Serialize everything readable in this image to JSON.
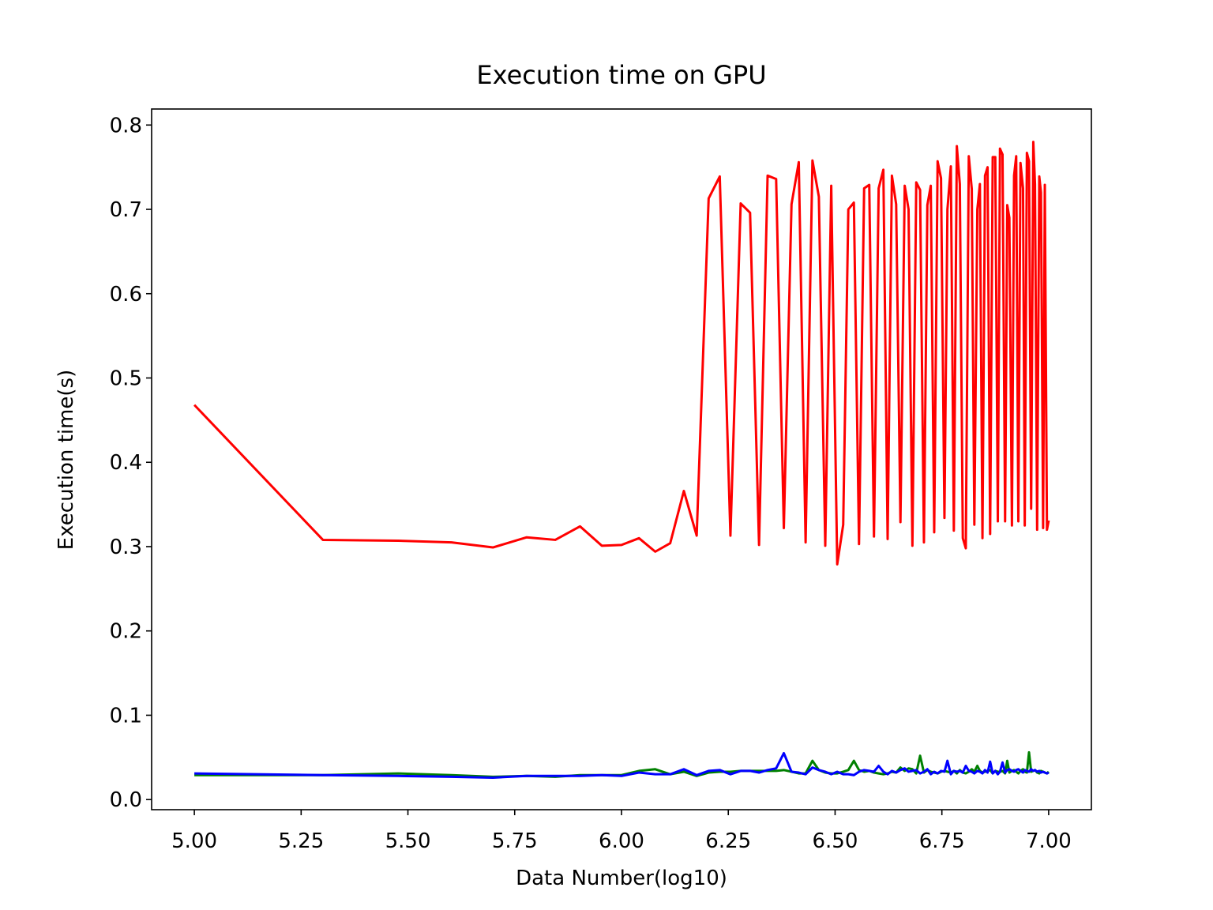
{
  "chart_data": {
    "type": "line",
    "title": "Execution time on GPU",
    "xlabel": "Data Number(log10)",
    "ylabel": "Execution time(s)",
    "x": [
      5.0,
      5.301,
      5.477,
      5.602,
      5.699,
      5.778,
      5.845,
      5.903,
      5.954,
      6.0,
      6.041,
      6.079,
      6.114,
      6.146,
      6.176,
      6.204,
      6.23,
      6.255,
      6.279,
      6.301,
      6.322,
      6.342,
      6.362,
      6.38,
      6.398,
      6.415,
      6.431,
      6.447,
      6.462,
      6.477,
      6.491,
      6.505,
      6.519,
      6.531,
      6.544,
      6.556,
      6.568,
      6.58,
      6.591,
      6.602,
      6.613,
      6.623,
      6.633,
      6.643,
      6.653,
      6.663,
      6.672,
      6.681,
      6.69,
      6.699,
      6.708,
      6.716,
      6.724,
      6.732,
      6.74,
      6.748,
      6.756,
      6.763,
      6.771,
      6.778,
      6.785,
      6.792,
      6.799,
      6.806,
      6.813,
      6.82,
      6.826,
      6.833,
      6.839,
      6.845,
      6.851,
      6.857,
      6.863,
      6.869,
      6.875,
      6.881,
      6.886,
      6.892,
      6.898,
      6.903,
      6.908,
      6.914,
      6.919,
      6.924,
      6.929,
      6.934,
      6.94,
      6.944,
      6.949,
      6.954,
      6.959,
      6.964,
      6.968,
      6.973,
      6.978,
      6.982,
      6.987,
      6.991,
      6.996,
      7.0
    ],
    "series": [
      {
        "color": "#ff0000",
        "values": [
          0.468,
          0.308,
          0.307,
          0.305,
          0.299,
          0.311,
          0.308,
          0.324,
          0.301,
          0.302,
          0.31,
          0.294,
          0.304,
          0.366,
          0.313,
          0.713,
          0.739,
          0.313,
          0.707,
          0.696,
          0.302,
          0.74,
          0.736,
          0.322,
          0.706,
          0.756,
          0.305,
          0.758,
          0.715,
          0.301,
          0.728,
          0.279,
          0.326,
          0.7,
          0.708,
          0.303,
          0.725,
          0.729,
          0.312,
          0.725,
          0.747,
          0.309,
          0.74,
          0.706,
          0.329,
          0.728,
          0.7,
          0.301,
          0.732,
          0.723,
          0.305,
          0.705,
          0.728,
          0.317,
          0.757,
          0.737,
          0.334,
          0.7,
          0.751,
          0.319,
          0.775,
          0.73,
          0.31,
          0.298,
          0.763,
          0.724,
          0.326,
          0.7,
          0.73,
          0.31,
          0.74,
          0.75,
          0.315,
          0.762,
          0.762,
          0.33,
          0.772,
          0.765,
          0.33,
          0.705,
          0.69,
          0.325,
          0.74,
          0.763,
          0.33,
          0.755,
          0.725,
          0.325,
          0.767,
          0.757,
          0.345,
          0.78,
          0.73,
          0.32,
          0.739,
          0.72,
          0.322,
          0.729,
          0.32,
          0.331
        ]
      },
      {
        "color": "#008000",
        "values": [
          0.029,
          0.029,
          0.031,
          0.029,
          0.027,
          0.028,
          0.027,
          0.029,
          0.029,
          0.029,
          0.034,
          0.036,
          0.03,
          0.033,
          0.028,
          0.032,
          0.033,
          0.033,
          0.034,
          0.034,
          0.034,
          0.034,
          0.034,
          0.035,
          0.033,
          0.031,
          0.031,
          0.046,
          0.035,
          0.032,
          0.031,
          0.031,
          0.033,
          0.035,
          0.046,
          0.035,
          0.033,
          0.034,
          0.032,
          0.031,
          0.03,
          0.031,
          0.033,
          0.032,
          0.038,
          0.034,
          0.037,
          0.036,
          0.031,
          0.052,
          0.032,
          0.035,
          0.033,
          0.032,
          0.031,
          0.033,
          0.034,
          0.033,
          0.032,
          0.034,
          0.031,
          0.035,
          0.032,
          0.031,
          0.033,
          0.036,
          0.033,
          0.04,
          0.034,
          0.032,
          0.033,
          0.034,
          0.035,
          0.031,
          0.034,
          0.033,
          0.033,
          0.034,
          0.031,
          0.046,
          0.032,
          0.034,
          0.035,
          0.033,
          0.031,
          0.034,
          0.036,
          0.033,
          0.032,
          0.056,
          0.033,
          0.034,
          0.035,
          0.032,
          0.031,
          0.034,
          0.033,
          0.032,
          0.031,
          0.033
        ]
      },
      {
        "color": "#0000ff",
        "values": [
          0.031,
          0.029,
          0.028,
          0.027,
          0.026,
          0.028,
          0.028,
          0.028,
          0.029,
          0.028,
          0.032,
          0.03,
          0.03,
          0.036,
          0.029,
          0.034,
          0.035,
          0.03,
          0.034,
          0.034,
          0.032,
          0.035,
          0.037,
          0.055,
          0.033,
          0.032,
          0.03,
          0.038,
          0.035,
          0.033,
          0.03,
          0.033,
          0.03,
          0.03,
          0.029,
          0.033,
          0.035,
          0.034,
          0.033,
          0.04,
          0.033,
          0.03,
          0.034,
          0.032,
          0.035,
          0.037,
          0.033,
          0.034,
          0.035,
          0.031,
          0.033,
          0.036,
          0.03,
          0.033,
          0.031,
          0.034,
          0.033,
          0.046,
          0.03,
          0.034,
          0.033,
          0.034,
          0.032,
          0.04,
          0.034,
          0.033,
          0.031,
          0.034,
          0.033,
          0.031,
          0.035,
          0.032,
          0.045,
          0.031,
          0.034,
          0.03,
          0.033,
          0.044,
          0.032,
          0.035,
          0.036,
          0.034,
          0.033,
          0.035,
          0.036,
          0.034,
          0.032,
          0.035,
          0.034,
          0.033,
          0.036,
          0.034,
          0.035,
          0.033,
          0.034,
          0.032,
          0.033,
          0.032,
          0.031,
          0.032
        ]
      }
    ],
    "xlim": [
      4.9,
      7.1
    ],
    "xticks": [
      {
        "value": 5,
        "label": "5.00"
      },
      {
        "value": 5.25,
        "label": "5.25"
      },
      {
        "value": 5.5,
        "label": "5.50"
      },
      {
        "value": 5.75,
        "label": "5.75"
      },
      {
        "value": 6,
        "label": "6.00"
      },
      {
        "value": 6.25,
        "label": "6.25"
      },
      {
        "value": 6.5,
        "label": "6.50"
      },
      {
        "value": 6.75,
        "label": "6.75"
      },
      {
        "value": 7,
        "label": "7.00"
      }
    ],
    "ylim": [
      -0.012,
      0.819
    ],
    "yticks": [
      {
        "value": 0,
        "label": "0.0"
      },
      0.1,
      0.2,
      0.3,
      0.4,
      0.5,
      0.6,
      0.7,
      0.8
    ],
    "grid": false
  }
}
